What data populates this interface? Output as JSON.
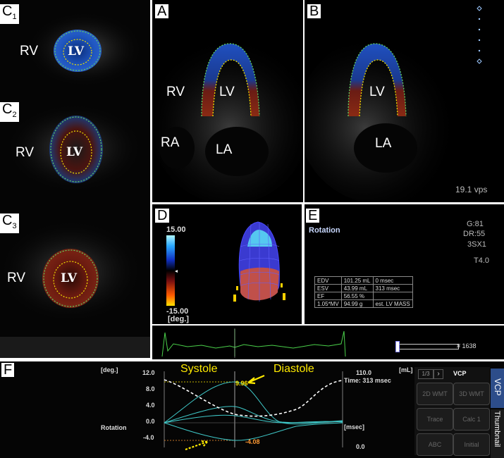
{
  "labels": {
    "c1": "C",
    "c1_sub": "1",
    "c2": "C",
    "c2_sub": "2",
    "c3": "C",
    "c3_sub": "3",
    "a": "A",
    "b": "B",
    "d": "D",
    "e": "E",
    "f": "F"
  },
  "anatomy": {
    "rv": "RV",
    "lv": "LV",
    "la": "LA",
    "ra": "RA"
  },
  "panel_b": {
    "fps": "19.1 vps"
  },
  "panel_d": {
    "scale_max": "15.00",
    "scale_min": "-15.00",
    "unit": "[deg.]"
  },
  "panel_e": {
    "title": "Rotation",
    "settings": [
      "G:81",
      "DR:55",
      "3SX1",
      "T4.0"
    ],
    "table": [
      [
        "EDV",
        "101.25 mL",
        "0 msec"
      ],
      [
        "ESV",
        "43.99 mL",
        "313 msec"
      ],
      [
        "EF",
        "56.55 %",
        ""
      ],
      [
        "1.05*MV",
        "94.99 g",
        "est. LV MASS"
      ]
    ],
    "frame": "# 1638"
  },
  "panel_f": {
    "unit_deg": "[deg.]",
    "row_label": "Rotation",
    "yticks": [
      "12.0",
      "8.0",
      "4.0",
      "0.0",
      "-4.0"
    ],
    "systole": "Systole",
    "diastole": "Diastole",
    "peak": "9.96",
    "trough": "-4.08",
    "vol_top": "110.0",
    "time": "Time: 313 msec",
    "msec": "[msec]",
    "vol_bottom": "0.0",
    "ml": "[mL]",
    "colors": {
      "highlight": "#ffea00",
      "trough": "#ff9933",
      "curve": "#3fc8c8"
    }
  },
  "vcp": {
    "pager": "1/3",
    "next": "›",
    "title": "VCP",
    "buttons": [
      "2D WMT",
      "3D WMT",
      "Trace",
      "Calc 1",
      "ABC",
      "Initial"
    ],
    "tab_vcp": "VCP",
    "tab_thumbnail": "Thumbnail"
  }
}
